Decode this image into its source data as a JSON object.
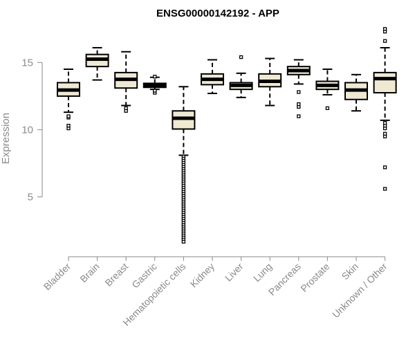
{
  "chart_data": {
    "type": "boxplot",
    "title": "ENSG00000142192 - APP",
    "ylabel": "Expression",
    "xlabel": "",
    "ylim": [
      0.6,
      17.9
    ],
    "yticks": [
      5,
      10,
      15
    ],
    "colors": {
      "box_fill": "#efe9d2",
      "stroke": "#000000",
      "axis": "#8a8a8a",
      "text": "#8a8a8a"
    },
    "categories": [
      "Bladder",
      "Brain",
      "Breast",
      "Gastric",
      "Hematopoietic cells",
      "Kidney",
      "Liver",
      "Lung",
      "Pancreas",
      "Prostate",
      "Skin",
      "Unknown / Other"
    ],
    "series": [
      {
        "label": "Bladder",
        "whisker_low": 11.3,
        "q1": 12.5,
        "median": 12.95,
        "q3": 13.5,
        "whisker_high": 14.5,
        "outliers": [
          10.1,
          10.3,
          10.9,
          11.0
        ]
      },
      {
        "label": "Brain",
        "whisker_low": 13.7,
        "q1": 14.7,
        "median": 15.25,
        "q3": 15.6,
        "whisker_high": 16.1,
        "outliers": []
      },
      {
        "label": "Breast",
        "whisker_low": 11.8,
        "q1": 13.1,
        "median": 13.75,
        "q3": 14.25,
        "whisker_high": 15.8,
        "outliers": [
          11.4,
          11.6
        ]
      },
      {
        "label": "Gastric",
        "whisker_low": 13.0,
        "q1": 13.15,
        "median": 13.3,
        "q3": 13.45,
        "whisker_high": 13.9,
        "outliers": [
          12.75,
          12.9,
          13.95
        ]
      },
      {
        "label": "Hematopoietic cells",
        "whisker_low": 8.1,
        "q1": 10.05,
        "median": 10.85,
        "q3": 11.4,
        "whisker_high": 13.2,
        "outlier_range": [
          1.6,
          8.0
        ],
        "outliers": []
      },
      {
        "label": "Kidney",
        "whisker_low": 12.7,
        "q1": 13.35,
        "median": 13.75,
        "q3": 14.15,
        "whisker_high": 15.2,
        "outliers": []
      },
      {
        "label": "Liver",
        "whisker_low": 12.4,
        "q1": 13.0,
        "median": 13.3,
        "q3": 13.5,
        "whisker_high": 14.2,
        "outliers": [
          15.4
        ]
      },
      {
        "label": "Lung",
        "whisker_low": 11.8,
        "q1": 13.2,
        "median": 13.6,
        "q3": 14.15,
        "whisker_high": 15.3,
        "outliers": []
      },
      {
        "label": "Pancreas",
        "whisker_low": 13.4,
        "q1": 14.1,
        "median": 14.4,
        "q3": 14.7,
        "whisker_high": 15.2,
        "outliers": [
          11.0,
          11.7,
          11.9,
          12.8
        ]
      },
      {
        "label": "Prostate",
        "whisker_low": 12.6,
        "q1": 13.0,
        "median": 13.3,
        "q3": 13.6,
        "whisker_high": 14.5,
        "outliers": [
          11.6
        ]
      },
      {
        "label": "Skin",
        "whisker_low": 11.4,
        "q1": 12.25,
        "median": 12.95,
        "q3": 13.5,
        "whisker_high": 14.1,
        "outliers": []
      },
      {
        "label": "Unknown / Other",
        "whisker_low": 10.7,
        "q1": 12.75,
        "median": 13.8,
        "q3": 14.25,
        "whisker_high": 16.1,
        "outliers": [
          5.6,
          7.2,
          9.5,
          9.7,
          10.1,
          10.3,
          10.5,
          16.6,
          17.3,
          17.5
        ]
      }
    ]
  }
}
